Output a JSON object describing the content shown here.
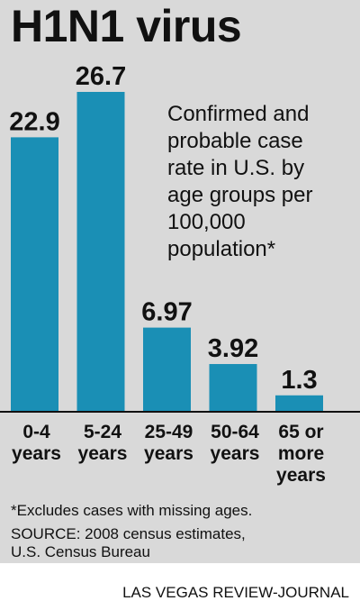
{
  "chart_data": {
    "type": "bar",
    "title": "H1N1 virus",
    "subtitle_lines": [
      "Confirmed and",
      "probable case",
      "rate in U.S. by",
      "age groups per",
      "100,000",
      "population*"
    ],
    "categories": [
      [
        "0-4",
        "years"
      ],
      [
        "5-24",
        "years"
      ],
      [
        "25-49",
        "years"
      ],
      [
        "50-64",
        "years"
      ],
      [
        "65 or",
        "more",
        "years"
      ]
    ],
    "values": [
      22.9,
      26.7,
      6.97,
      3.92,
      1.3
    ],
    "value_labels": [
      "22.9",
      "26.7",
      "6.97",
      "3.92",
      "1.3"
    ],
    "ylim": [
      0,
      26.7
    ],
    "grid": false,
    "legend": "none",
    "bar_color": "#1a8fb5"
  },
  "footnote": "*Excludes cases with missing ages.",
  "source_lines": [
    "SOURCE: 2008 census estimates,",
    "U.S. Census Bureau"
  ],
  "credit": "LAS VEGAS REVIEW-JOURNAL",
  "colors": {
    "panel": "#d9d9d9",
    "bar": "#1a8fb5",
    "baseline": "#111111"
  }
}
